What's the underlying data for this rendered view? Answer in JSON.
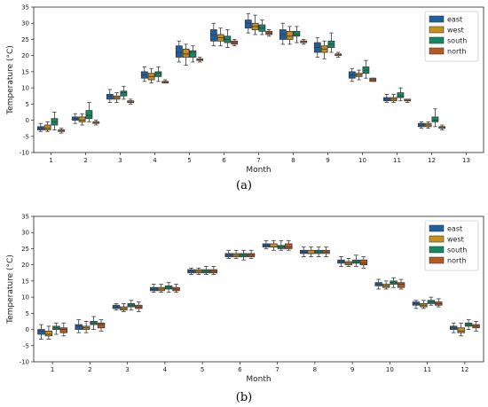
{
  "figure": {
    "colors": {
      "east": "#1f5f9f",
      "west": "#c8901a",
      "south": "#118a62",
      "north": "#b65a22"
    }
  },
  "chart_data": [
    {
      "type": "box",
      "caption": "(a)",
      "xlabel": "Month",
      "ylabel": "Temperature (°C)",
      "ylim": [
        -10,
        35
      ],
      "yticks": [
        -10,
        -5,
        0,
        5,
        10,
        15,
        20,
        25,
        30,
        35
      ],
      "categories": [
        "1",
        "2",
        "3",
        "4",
        "5",
        "6",
        "7",
        "8",
        "9",
        "10",
        "11",
        "12",
        "13"
      ],
      "legend_position": "top-right",
      "grid": false,
      "series": [
        {
          "name": "east",
          "color": "#1f5f9f",
          "boxes": [
            [
              -3.5,
              -3,
              -2.5,
              -2,
              -1
            ],
            [
              -1,
              0,
              0.5,
              1,
              2
            ],
            [
              5.5,
              6.5,
              7.5,
              8,
              9.5
            ],
            [
              12,
              13,
              14,
              15,
              16.5
            ],
            [
              18,
              19.5,
              21,
              23,
              24.5
            ],
            [
              23,
              24.5,
              26.5,
              28,
              30
            ],
            [
              27,
              28.5,
              30,
              31,
              33
            ],
            [
              23.5,
              25,
              26.5,
              28,
              30
            ],
            [
              19.5,
              21,
              22.5,
              24,
              25.5
            ],
            [
              12,
              13,
              14,
              15,
              16
            ],
            [
              5.5,
              6,
              6.5,
              7,
              8
            ],
            [
              -2.5,
              -2,
              -1.5,
              -1,
              -0.5
            ],
            null
          ]
        },
        {
          "name": "west",
          "color": "#c8901a",
          "boxes": [
            [
              -3.5,
              -3,
              -2.5,
              -1.5,
              -0.5
            ],
            [
              -1.5,
              -0.5,
              0,
              1,
              2
            ],
            [
              5.5,
              6.5,
              7,
              7.5,
              8.5
            ],
            [
              11.5,
              12.5,
              13.5,
              14.5,
              16
            ],
            [
              17,
              19.5,
              20.5,
              22,
              23.5
            ],
            [
              23,
              24.5,
              25.5,
              26.5,
              28.5
            ],
            [
              26.5,
              28,
              29,
              30,
              32.5
            ],
            [
              23.5,
              25,
              26,
              27.5,
              29
            ],
            [
              19,
              21,
              22,
              23,
              24.5
            ],
            [
              12.5,
              13.5,
              14,
              14.5,
              15.5
            ],
            [
              5.5,
              6,
              6.5,
              7,
              8
            ],
            [
              -2.5,
              -2,
              -1.5,
              -1,
              -0.5
            ],
            null
          ]
        },
        {
          "name": "south",
          "color": "#118a62",
          "boxes": [
            [
              -3,
              -1.5,
              -0.5,
              0.5,
              2.5
            ],
            [
              -0.5,
              0.5,
              1.5,
              3,
              5.5
            ],
            [
              6.5,
              7.5,
              8.5,
              9,
              10.5
            ],
            [
              12,
              13.5,
              14.5,
              15,
              16.5
            ],
            [
              18,
              19.5,
              21,
              21.5,
              23
            ],
            [
              22.5,
              24,
              25,
              26,
              28
            ],
            [
              26.5,
              27.5,
              28.5,
              29.5,
              31
            ],
            [
              24,
              26,
              26.5,
              27.5,
              29
            ],
            [
              21,
              22.5,
              23.5,
              24.5,
              27
            ],
            [
              13,
              14.5,
              15.5,
              16.5,
              18.5
            ],
            [
              6,
              7,
              7.5,
              8.5,
              10
            ],
            [
              -2,
              -0.5,
              0,
              1,
              3.5
            ],
            null
          ]
        },
        {
          "name": "north",
          "color": "#b65a22",
          "boxes": [
            [
              -4,
              -3.5,
              -3,
              -3,
              -2.5
            ],
            [
              -1.5,
              -1,
              -0.5,
              -0.5,
              0
            ],
            [
              5,
              5.5,
              5.5,
              6,
              6.5
            ],
            [
              11.5,
              11.5,
              12,
              12,
              12.5
            ],
            [
              18,
              18.5,
              18.5,
              19,
              19.5
            ],
            [
              23,
              23.5,
              24,
              24.5,
              25
            ],
            [
              26,
              26.5,
              27,
              27.5,
              28
            ],
            [
              23.5,
              24,
              24.5,
              24.5,
              25
            ],
            [
              19.5,
              20,
              20.5,
              20.5,
              21
            ],
            [
              12,
              12,
              12.5,
              13,
              13
            ],
            [
              5.5,
              6,
              6,
              6.5,
              6.5
            ],
            [
              -3,
              -2.5,
              -2,
              -2,
              -1.5
            ],
            null
          ]
        }
      ]
    },
    {
      "type": "box",
      "caption": "(b)",
      "xlabel": "Month",
      "ylabel": "Temperature (°C)",
      "ylim": [
        -10,
        35
      ],
      "yticks": [
        -10,
        -5,
        0,
        5,
        10,
        15,
        20,
        25,
        30,
        35
      ],
      "categories": [
        "1",
        "2",
        "3",
        "4",
        "5",
        "6",
        "7",
        "8",
        "9",
        "10",
        "11",
        "12"
      ],
      "legend_position": "top-right",
      "grid": false,
      "series": [
        {
          "name": "east",
          "color": "#1f5f9f",
          "boxes": [
            [
              -3,
              -1.5,
              -0.5,
              0,
              1.5
            ],
            [
              -1,
              0,
              1,
              1.5,
              3
            ],
            [
              6,
              6.5,
              7,
              7.5,
              8
            ],
            [
              11.5,
              12,
              12.5,
              13,
              14
            ],
            [
              17,
              17.5,
              18,
              18.5,
              19
            ],
            [
              22,
              22.5,
              23,
              23.5,
              24.5
            ],
            [
              25,
              25.5,
              26,
              26.5,
              27.5
            ],
            [
              22.5,
              23.5,
              24,
              24.5,
              25.5
            ],
            [
              19.5,
              20.5,
              21,
              21.5,
              22.5
            ],
            [
              12.5,
              13.5,
              14,
              14.5,
              15.5
            ],
            [
              6.5,
              7.5,
              8,
              8.5,
              9
            ],
            [
              -1,
              0,
              0.5,
              1,
              2
            ]
          ]
        },
        {
          "name": "west",
          "color": "#c8901a",
          "boxes": [
            [
              -3,
              -2,
              -1.5,
              -0.5,
              1
            ],
            [
              -1,
              0,
              0.5,
              1,
              2.5
            ],
            [
              5.5,
              6,
              6.5,
              7,
              8
            ],
            [
              11.5,
              12,
              12.5,
              13,
              14
            ],
            [
              17,
              17.5,
              18,
              18.5,
              19
            ],
            [
              22,
              22.5,
              23,
              23.5,
              24.5
            ],
            [
              24.5,
              25.5,
              25.5,
              26.5,
              27.5
            ],
            [
              22.5,
              23.5,
              23.5,
              24.5,
              25.5
            ],
            [
              19.5,
              20,
              20.5,
              21,
              22
            ],
            [
              12.5,
              13,
              13.5,
              14,
              15
            ],
            [
              6.5,
              7,
              7.5,
              8,
              9
            ],
            [
              -2,
              -1,
              -0.5,
              0.5,
              2
            ]
          ]
        },
        {
          "name": "south",
          "color": "#118a62",
          "boxes": [
            [
              -1.5,
              0,
              0.5,
              1,
              2
            ],
            [
              0,
              1.5,
              2,
              2.5,
              4
            ],
            [
              6,
              7,
              7.5,
              8,
              9
            ],
            [
              11.5,
              12.5,
              13,
              13.5,
              14.5
            ],
            [
              17,
              17.5,
              18,
              18.5,
              19.5
            ],
            [
              21.5,
              22.5,
              23,
              23.5,
              24.5
            ],
            [
              24.5,
              25,
              25.5,
              26,
              27.5
            ],
            [
              22.5,
              23.5,
              24,
              24.5,
              25.5
            ],
            [
              19.5,
              20.5,
              21,
              21.5,
              23
            ],
            [
              13,
              14,
              14.5,
              15,
              16
            ],
            [
              7.5,
              8,
              8.5,
              9,
              10
            ],
            [
              0,
              1,
              1.5,
              2,
              3
            ]
          ]
        },
        {
          "name": "north",
          "color": "#b65a22",
          "boxes": [
            [
              -2,
              -1,
              0,
              0.5,
              2
            ],
            [
              -0.5,
              0.5,
              1.5,
              2,
              3
            ],
            [
              5.5,
              6.5,
              7,
              7.5,
              8.5
            ],
            [
              11.5,
              12,
              12.5,
              13,
              14
            ],
            [
              17,
              17.5,
              18,
              18.5,
              19.5
            ],
            [
              22,
              22.5,
              23,
              23.5,
              24.5
            ],
            [
              24.5,
              25,
              25.5,
              26.5,
              27.5
            ],
            [
              22.5,
              23.5,
              24,
              24.5,
              25.5
            ],
            [
              19,
              20,
              20.5,
              21.5,
              22.5
            ],
            [
              12.5,
              13,
              14,
              14.5,
              15.5
            ],
            [
              7,
              7.5,
              8,
              8.5,
              9.5
            ],
            [
              -0.5,
              0.5,
              1,
              1.5,
              2.5
            ]
          ]
        }
      ]
    }
  ]
}
